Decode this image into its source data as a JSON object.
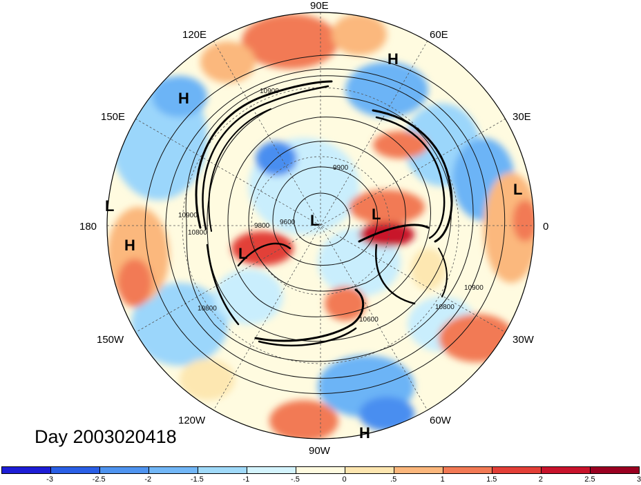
{
  "map": {
    "projection": "north-polar-stereographic",
    "longitude_labels": [
      "90E",
      "60E",
      "30E",
      "0",
      "30W",
      "60W",
      "90W",
      "120W",
      "150W",
      "180",
      "150E",
      "120E"
    ],
    "pressure_centers": [
      {
        "type": "H",
        "region": "north-atlantic-top"
      },
      {
        "type": "H",
        "region": "east-asia"
      },
      {
        "type": "H",
        "region": "dateline-pacific"
      },
      {
        "type": "H",
        "region": "caribbean"
      },
      {
        "type": "L",
        "region": "north-pole"
      },
      {
        "type": "L",
        "region": "arctic-europe"
      },
      {
        "type": "L",
        "region": "alaska-canada"
      },
      {
        "type": "L",
        "region": "west-africa-edge"
      },
      {
        "type": "L",
        "region": "dateline-edge"
      }
    ],
    "contour_levels": [
      "10900",
      "9900",
      "9600",
      "9800",
      "10800",
      "10900",
      "10600",
      "10800",
      "10900",
      "10800"
    ],
    "fill_colors": [
      "#1a1ad6",
      "#2a5ae6",
      "#4a8ef0",
      "#6cb4f6",
      "#9bd6fb",
      "#c9eefd",
      "#fffbe0",
      "#fde7b1",
      "#fbb87d",
      "#f27a55",
      "#e24137",
      "#c8122a",
      "#9b0020"
    ]
  },
  "day_label": "Day 2003020418",
  "colorbar": {
    "colors": [
      "#1d1dd6",
      "#2a5fe6",
      "#4f94f0",
      "#72b7f7",
      "#a0daf9",
      "#d4f4fd",
      "#fffbe0",
      "#fde6b0",
      "#fbb77c",
      "#f27a55",
      "#e33f37",
      "#c8132b",
      "#9a0021"
    ],
    "tick_labels": [
      "-3",
      "-2.5",
      "-2",
      "-1.5",
      "-1",
      "-.5",
      "0",
      ".5",
      "1",
      "1.5",
      "2",
      "2.5",
      "3"
    ]
  }
}
